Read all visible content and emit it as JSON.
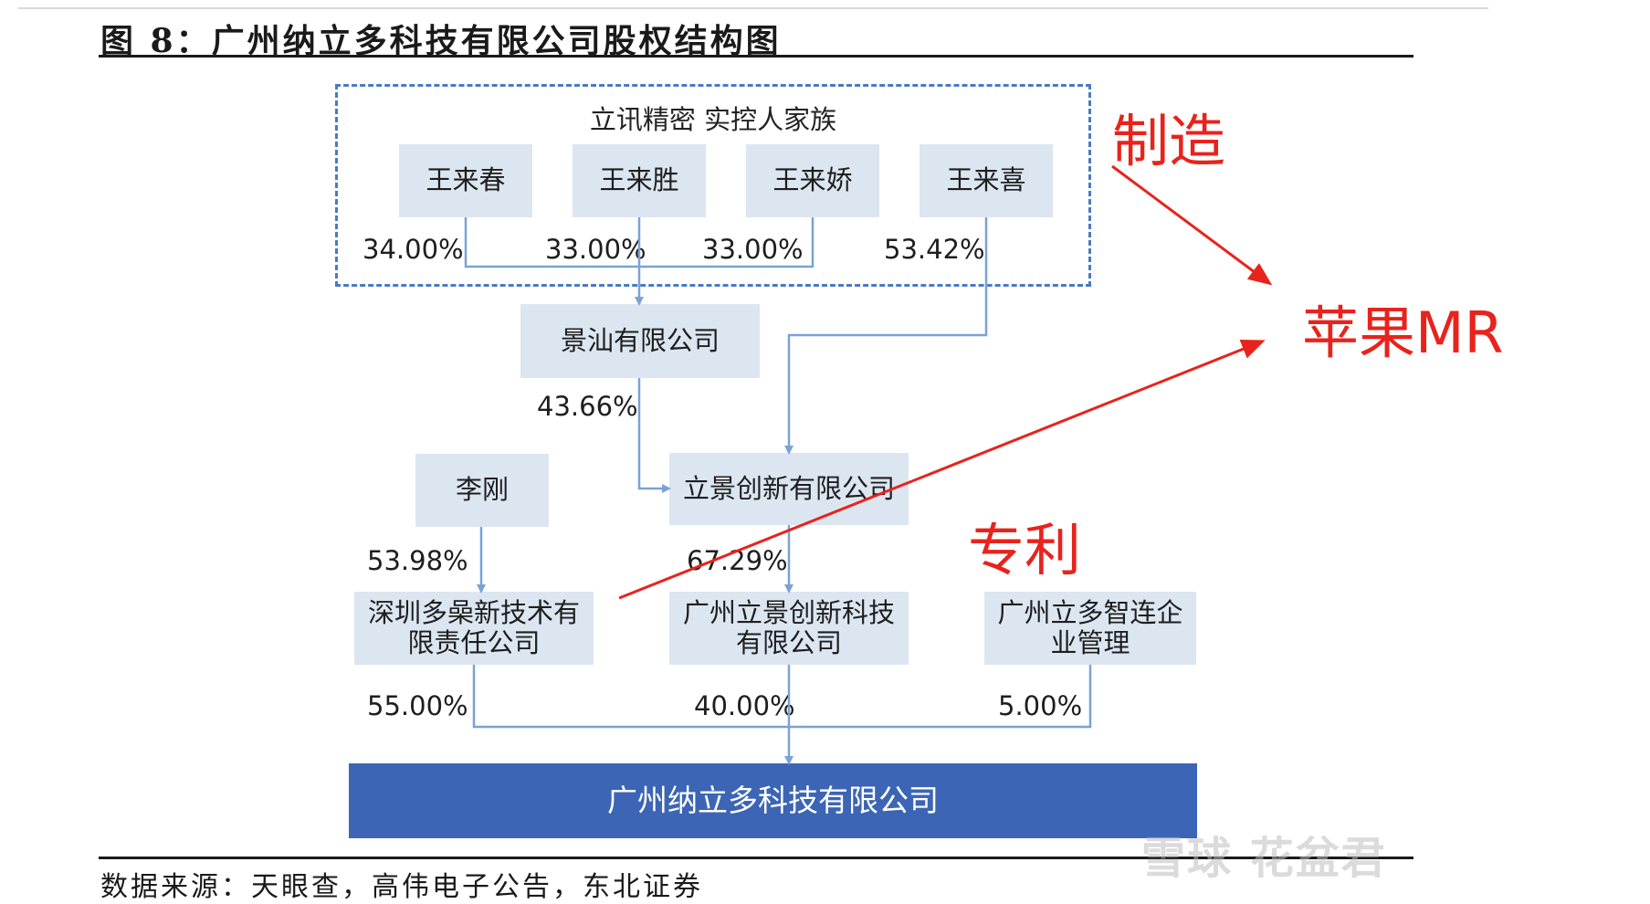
{
  "header": {
    "title": "图 8：广州纳立多科技有限公司股权结构图"
  },
  "family_group": {
    "title": "立讯精密 实控人家族",
    "members": [
      "王来春",
      "王来胜",
      "王来娇",
      "王来喜"
    ]
  },
  "entities": {
    "jingshan": "景汕有限公司",
    "lijing": "立景创新有限公司",
    "ligang": "李刚",
    "duocao": "深圳多喿新技术有限责任公司",
    "gz_lijing": "广州立景创新科技有限公司",
    "gz_liduo": "广州立多智连企业管理",
    "target": "广州纳立多科技有限公司"
  },
  "percentages": {
    "wlc": "34.00%",
    "wls": "33.00%",
    "wlj": "33.00%",
    "wlx": "53.42%",
    "jingshan_to_lijing": "43.66%",
    "ligang_to_duocao": "53.98%",
    "lijing_to_gzlijing": "67.29%",
    "duocao_to_target": "55.00%",
    "gzlijing_to_target": "40.00%",
    "gzliduo_to_target": "5.00%"
  },
  "annotations": {
    "manufacture": "制造",
    "apple_mr": "苹果MR",
    "patent": "专利"
  },
  "footer": {
    "source": "数据来源：天眼查，高伟电子公告，东北证券"
  },
  "watermark": "雪球 花盆君",
  "colors": {
    "box_fill": "#dce6f1",
    "target_fill": "#3c65b5",
    "connector": "#7aa2d6",
    "dashed_frame": "#4a7bc1",
    "annotation_red": "#e8231c"
  }
}
